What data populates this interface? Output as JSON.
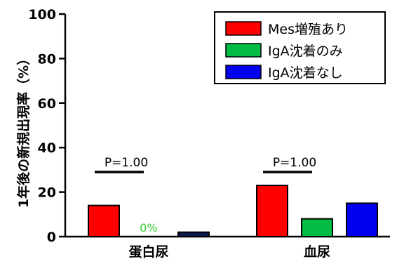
{
  "chart_data": {
    "type": "bar",
    "ylabel": "1年後の新規出現率（%）",
    "ylim": [
      0,
      100
    ],
    "yticks": [
      0,
      20,
      40,
      60,
      80,
      100
    ],
    "grid": false,
    "legend_position": "top-right",
    "categories": [
      "蛋白尿",
      "血尿"
    ],
    "series": [
      {
        "name": "Mes増殖あり",
        "color": "#ff0000",
        "values": [
          14,
          23
        ]
      },
      {
        "name": "IgA沈着のみ",
        "color": "#00bb44",
        "values": [
          0,
          8
        ]
      },
      {
        "name": "IgA沈着なし",
        "color": "#0000ee",
        "values": [
          2,
          15
        ]
      }
    ],
    "annotations": [
      {
        "text": "P=1.00",
        "category": 0
      },
      {
        "text": "P=1.00",
        "category": 1
      },
      {
        "text": "0%",
        "category": 0,
        "series": 1,
        "color": "#33cc33"
      }
    ],
    "zero_bar_color": "#0a1a50"
  }
}
